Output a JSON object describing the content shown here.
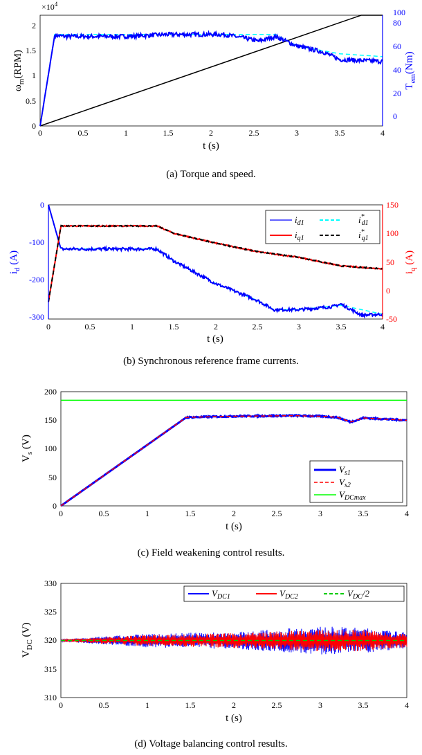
{
  "panels": [
    {
      "caption": "(a) Torque and speed.",
      "chart_data": {
        "type": "line",
        "xlabel": "t (s)",
        "ylabel_left": "ω_m (RPM)",
        "ylabel_right": "T_em (Nm)",
        "left_scale_note": "×10^4",
        "xlim": [
          0,
          4
        ],
        "ylim_left": [
          0,
          2.2
        ],
        "ylim_right": [
          -15,
          100
        ],
        "xticks": [
          "0",
          "0.5",
          "1",
          "1.5",
          "2",
          "2.5",
          "3",
          "3.5",
          "4"
        ],
        "yticks_left": [
          "0",
          "0.5",
          "1",
          "1.5",
          "2"
        ],
        "yticks_right": [
          "0",
          "20",
          "40",
          "60",
          "80",
          "100"
        ],
        "grid": false,
        "series": [
          {
            "axis": "left",
            "color": "#000000",
            "style": "solid",
            "x": [
              0,
              3.75,
              4
            ],
            "y": [
              0,
              2.2,
              2.2
            ]
          },
          {
            "axis": "right",
            "color": "#00ffff",
            "style": "dashed",
            "x": [
              0,
              0.17,
              2.7,
              2.75,
              3.0,
              3.5,
              4
            ],
            "y": [
              -15,
              80,
              80,
              80,
              68,
              60,
              57
            ]
          },
          {
            "axis": "right",
            "color": "#0000ff",
            "style": "solid",
            "noise": 2.2,
            "x": [
              0,
              0.17,
              0.3,
              1.0,
              1.5,
              2.15,
              2.4,
              2.55,
              2.75,
              3.0,
              3.3,
              3.5,
              4
            ],
            "y": [
              -15,
              79,
              78,
              78,
              80,
              80,
              76,
              73,
              78,
              68,
              62,
              54,
              52
            ]
          }
        ]
      }
    },
    {
      "caption": "(b) Synchronous reference frame currents.",
      "chart_data": {
        "type": "line",
        "xlabel": "t (s)",
        "ylabel_left": "i_d (A)",
        "ylabel_right": "i_q (A)",
        "xlim": [
          0,
          4
        ],
        "ylim_left": [
          -305,
          0
        ],
        "ylim_right": [
          -50,
          150
        ],
        "xticks": [
          "0",
          "0.5",
          "1",
          "1.5",
          "2",
          "2.5",
          "3",
          "3.5",
          "4"
        ],
        "yticks_left": [
          "0",
          "-100",
          "-200",
          "-300"
        ],
        "yticks_right": [
          "150",
          "100",
          "50",
          "0",
          "-50"
        ],
        "legend": [
          "i_d1",
          "i*_d1",
          "i_q1",
          "i*_q1"
        ],
        "grid": false,
        "series": [
          {
            "axis": "left",
            "color": "#00ffff",
            "style": "dashed",
            "x": [
              0,
              0.15,
              1.3,
              1.5,
              2.0,
              2.5,
              2.7,
              3.0,
              3.5,
              4
            ],
            "y": [
              0,
              -118,
              -118,
              -150,
              -210,
              -255,
              -280,
              -280,
              -268,
              -292
            ]
          },
          {
            "axis": "left",
            "color": "#0000ff",
            "style": "solid",
            "noise": 4,
            "x": [
              0,
              0.15,
              1.3,
              1.5,
              2.0,
              2.5,
              2.7,
              3.0,
              3.4,
              3.5,
              3.75,
              4
            ],
            "y": [
              0,
              -118,
              -118,
              -150,
              -210,
              -255,
              -280,
              -280,
              -272,
              -265,
              -295,
              -292
            ]
          },
          {
            "axis": "right",
            "color": "#ff0000",
            "style": "solid",
            "noise": 1,
            "x": [
              0,
              0.15,
              1.3,
              1.5,
              2.0,
              2.5,
              3.0,
              3.5,
              4
            ],
            "y": [
              -20,
              113,
              113,
              100,
              83,
              68,
              58,
              43,
              38
            ]
          },
          {
            "axis": "right",
            "color": "#000000",
            "style": "dashed",
            "noise": 1,
            "x": [
              0,
              0.15,
              1.3,
              1.5,
              2.0,
              2.5,
              3.0,
              3.5,
              4
            ],
            "y": [
              -20,
              113,
              113,
              100,
              83,
              68,
              58,
              43,
              38
            ]
          }
        ]
      }
    },
    {
      "caption": "(c) Field weakening control results.",
      "chart_data": {
        "type": "line",
        "xlabel": "t (s)",
        "ylabel": "V_s (V)",
        "xlim": [
          0,
          4
        ],
        "ylim": [
          0,
          200
        ],
        "xticks": [
          "0",
          "0.5",
          "1",
          "1.5",
          "2",
          "2.5",
          "3",
          "3.5",
          "4"
        ],
        "yticks": [
          "0",
          "50",
          "100",
          "150",
          "200"
        ],
        "legend": [
          "V_s1",
          "V_s2",
          "V_DCmax"
        ],
        "grid": false,
        "series": [
          {
            "color": "#00ff00",
            "style": "solid",
            "x": [
              0,
              4
            ],
            "y": [
              185,
              185
            ]
          },
          {
            "color": "#0000ff",
            "style": "solid",
            "width": 3,
            "noise": 1.2,
            "x": [
              0,
              1.45,
              2.0,
              2.7,
              3.0,
              3.2,
              3.35,
              3.5,
              4
            ],
            "y": [
              0,
              155,
              157,
              158,
              157,
              155,
              147,
              154,
              150
            ]
          },
          {
            "color": "#ff0000",
            "style": "dashed",
            "width": 1.5,
            "x": [
              0,
              1.45,
              2.0,
              2.7,
              3.0,
              3.2,
              3.35,
              3.5,
              4
            ],
            "y": [
              0,
              155,
              157,
              158,
              157,
              155,
              147,
              154,
              150
            ]
          }
        ]
      }
    },
    {
      "caption": "(d) Voltage balancing control results.",
      "chart_data": {
        "type": "line",
        "xlabel": "t (s)",
        "ylabel": "V_DC (V)",
        "xlim": [
          0,
          4
        ],
        "ylim": [
          310,
          330
        ],
        "xticks": [
          "0",
          "0.5",
          "1",
          "1.5",
          "2",
          "2.5",
          "3",
          "3.5",
          "4"
        ],
        "yticks": [
          "310",
          "315",
          "320",
          "325",
          "330"
        ],
        "legend": [
          "V_DC1",
          "V_DC2",
          "V_DC/2"
        ],
        "grid": false,
        "series": [
          {
            "color": "#0000ff",
            "style": "band",
            "center": 320,
            "x": [
              0,
              1,
              2,
              3,
              3.5,
              4
            ],
            "amp": [
              0.2,
              1.2,
              1.5,
              2.5,
              2.2,
              1.4
            ]
          },
          {
            "color": "#ff0000",
            "style": "band",
            "center": 320,
            "x": [
              0,
              1,
              2,
              3,
              3.5,
              4
            ],
            "amp": [
              0.2,
              1.0,
              1.3,
              1.9,
              1.9,
              1.2
            ]
          },
          {
            "color": "#00cc00",
            "style": "dashed",
            "x": [
              0,
              4
            ],
            "y": [
              320,
              320
            ]
          }
        ]
      }
    }
  ]
}
